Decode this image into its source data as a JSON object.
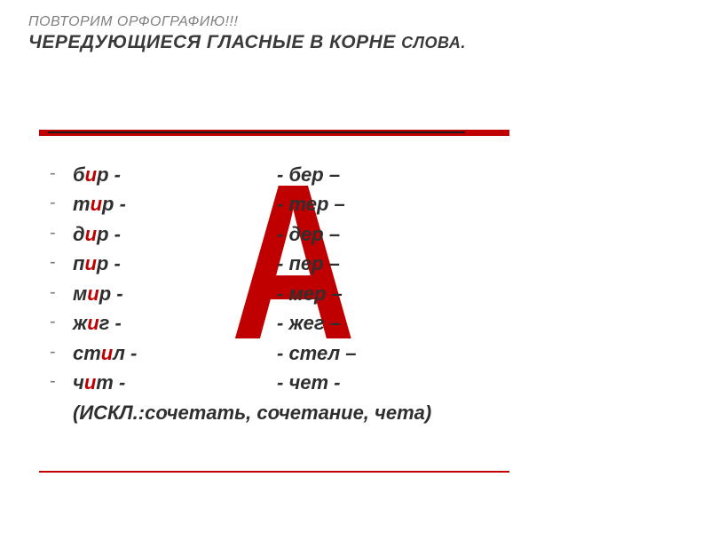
{
  "title": {
    "line1": "ПОВТОРИМ ОРФОГРАФИЮ!!!",
    "line2_main": "ЧЕРЕДУЮЩИЕСЯ ГЛАСНЫЕ В КОРНЕ ",
    "line2_tail": "СЛОВА."
  },
  "colors": {
    "accent": "#c00000",
    "text": "#2f2f2f",
    "muted": "#808080",
    "background": "#ffffff"
  },
  "big_letter": "А",
  "pairs": [
    {
      "l_pre": "б",
      "l_hi": "и",
      "l_post": "р -",
      "r": "- бер –"
    },
    {
      "l_pre": "т",
      "l_hi": "и",
      "l_post": "р -",
      "r": "- тер –"
    },
    {
      "l_pre": "д",
      "l_hi": "и",
      "l_post": "р -",
      "r": "- дер –"
    },
    {
      "l_pre": "п",
      "l_hi": "и",
      "l_post": "р -",
      "r": "- пер –"
    },
    {
      "l_pre": "м",
      "l_hi": "и",
      "l_post": "р -",
      "r": "- мер –"
    },
    {
      "l_pre": "ж",
      "l_hi": "и",
      "l_post": "г -",
      "r": "- жег –"
    },
    {
      "l_pre": "ст",
      "l_hi": "и",
      "l_post": "л -",
      "r": "- стел –"
    },
    {
      "l_pre": "ч",
      "l_hi": "и",
      "l_post": "т -",
      "r": "- чет -"
    }
  ],
  "note": "(ИСКЛ.:сочетать, сочетание, чета)",
  "typography": {
    "title1_fontsize": 16,
    "title2_fontsize": 21,
    "body_fontsize": 22,
    "bigA_fontsize": 250,
    "font_family": "Verdana"
  }
}
